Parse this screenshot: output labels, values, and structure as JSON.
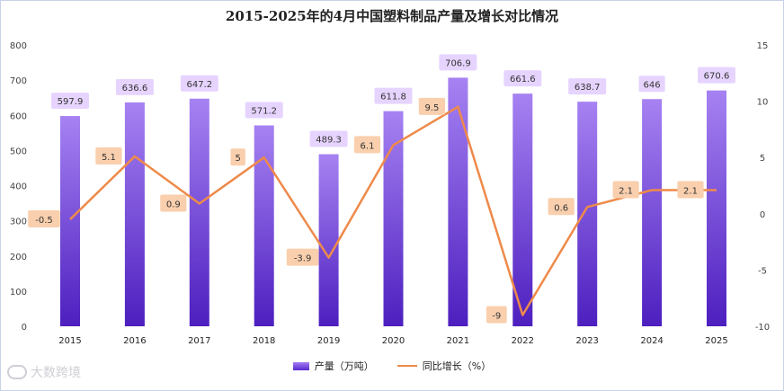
{
  "chart_data": {
    "type": "bar+line",
    "title": "2015-2025年的4月中国塑料制品产量及增长对比情况",
    "categories": [
      "2015",
      "2016",
      "2017",
      "2018",
      "2019",
      "2020",
      "2021",
      "2022",
      "2023",
      "2024",
      "2025"
    ],
    "series": [
      {
        "name": "产量（万吨）",
        "type": "bar",
        "axis": "left",
        "values": [
          597.9,
          636.6,
          647.2,
          571.2,
          489.3,
          611.8,
          706.9,
          661.6,
          638.7,
          646,
          670.6
        ],
        "labels": [
          "597.9",
          "636.6",
          "647.2",
          "571.2",
          "489.3",
          "611.8",
          "706.9",
          "661.6",
          "638.7",
          "646",
          "670.6"
        ]
      },
      {
        "name": "同比增长（%）",
        "type": "line",
        "axis": "right",
        "values": [
          -0.5,
          5.1,
          0.9,
          5,
          -3.9,
          6.1,
          9.5,
          -9,
          0.6,
          2.1,
          2.1
        ],
        "labels": [
          "-0.5",
          "5.1",
          "0.9",
          "5",
          "-3.9",
          "6.1",
          "9.5",
          "-9",
          "0.6",
          "2.1",
          "2.1"
        ]
      }
    ],
    "y_left": {
      "range": [
        0,
        800
      ],
      "ticks": [
        "0",
        "100",
        "200",
        "300",
        "400",
        "500",
        "600",
        "700",
        "800"
      ]
    },
    "y_right": {
      "range": [
        -10,
        15
      ],
      "ticks": [
        "-10",
        "-5",
        "0",
        "5",
        "10",
        "15"
      ]
    },
    "legend_position": "bottom",
    "colors": {
      "bar_top": "#a682f2",
      "bar_bottom": "#4d1fbf",
      "line": "#ee8a4a",
      "bar_label_bg": "#e6d4ff",
      "line_label_bg": "#f9cfae"
    }
  },
  "watermark": "大数跨境"
}
